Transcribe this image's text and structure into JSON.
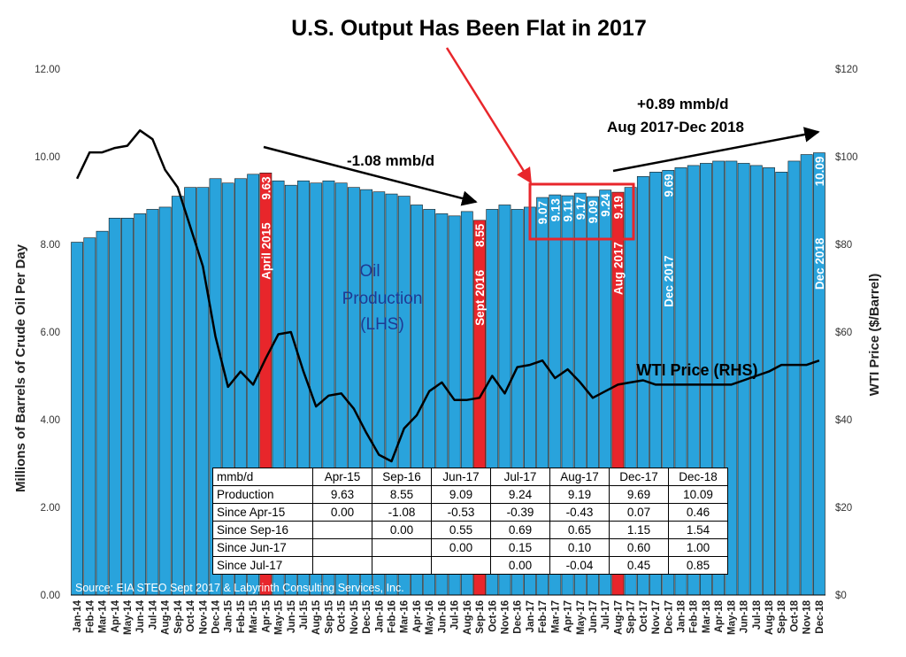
{
  "chart_data": {
    "type": "bar",
    "title": "U.S. Output Has Been Flat in 2017",
    "ylabel": "Millions of Barrels of Crude Oil Per Day",
    "y2label": "WTI Price ($/Barrel)",
    "ylim": [
      0,
      12
    ],
    "y2lim": [
      0,
      120
    ],
    "yticks": [
      "0.00",
      "2.00",
      "4.00",
      "6.00",
      "8.00",
      "10.00",
      "12.00"
    ],
    "y2ticks": [
      "$0",
      "$20",
      "$40",
      "$60",
      "$80",
      "$100",
      "$120"
    ],
    "bar_color": "#29A3DC",
    "highlight_color": "#E8262B",
    "line_color": "#000000",
    "grid": false,
    "categories": [
      "Jan-14",
      "Feb-14",
      "Mar-14",
      "Apr-14",
      "May-14",
      "Jun-14",
      "Jul-14",
      "Aug-14",
      "Sep-14",
      "Oct-14",
      "Nov-14",
      "Dec-14",
      "Jan-15",
      "Feb-15",
      "Mar-15",
      "Apr-15",
      "May-15",
      "Jun-15",
      "Jul-15",
      "Aug-15",
      "Sep-15",
      "Oct-15",
      "Nov-15",
      "Dec-15",
      "Jan-16",
      "Feb-16",
      "Mar-16",
      "Apr-16",
      "May-16",
      "Jun-16",
      "Jul-16",
      "Aug-16",
      "Sep-16",
      "Oct-16",
      "Nov-16",
      "Dec-16",
      "Jan-17",
      "Feb-17",
      "Mar-17",
      "Apr-17",
      "May-17",
      "Jun-17",
      "Jul-17",
      "Aug-17",
      "Sep-17",
      "Oct-17",
      "Nov-17",
      "Dec-17",
      "Jan-18",
      "Feb-18",
      "Mar-18",
      "Apr-18",
      "May-18",
      "Jun-18",
      "Jul-18",
      "Aug-18",
      "Sep-18",
      "Oct-18",
      "Nov-18",
      "Dec-18"
    ],
    "series": [
      {
        "name": "Oil Production (LHS)",
        "type": "bar",
        "values": [
          8.05,
          8.15,
          8.3,
          8.6,
          8.6,
          8.7,
          8.8,
          8.85,
          9.1,
          9.3,
          9.3,
          9.5,
          9.4,
          9.5,
          9.6,
          9.63,
          9.45,
          9.35,
          9.45,
          9.4,
          9.45,
          9.4,
          9.3,
          9.25,
          9.2,
          9.15,
          9.1,
          8.9,
          8.8,
          8.7,
          8.65,
          8.75,
          8.55,
          8.8,
          8.9,
          8.8,
          8.85,
          9.07,
          9.13,
          9.11,
          9.17,
          9.09,
          9.24,
          9.19,
          9.3,
          9.55,
          9.65,
          9.69,
          9.75,
          9.8,
          9.85,
          9.9,
          9.9,
          9.85,
          9.8,
          9.75,
          9.65,
          9.9,
          10.05,
          10.09
        ]
      },
      {
        "name": "WTI Price (RHS)",
        "type": "line",
        "axis": "right",
        "values": [
          95,
          101,
          101,
          102,
          102.5,
          106,
          104,
          97,
          93,
          84,
          75,
          59,
          47.5,
          51,
          48,
          54,
          59.5,
          60,
          51,
          43,
          45.5,
          46,
          42.5,
          37,
          32,
          30.5,
          38,
          41,
          46.5,
          48.5,
          44.5,
          44.5,
          45,
          50,
          46,
          52,
          52.5,
          53.5,
          49.5,
          51.5,
          48.5,
          45,
          46.5,
          48,
          48.5,
          49,
          48,
          48,
          48,
          48,
          48,
          48,
          48,
          49,
          50,
          51,
          52.5,
          52.5,
          52.5,
          53.5
        ]
      }
    ],
    "highlight_bars": [
      {
        "category": "Apr-15",
        "value": "9.63",
        "label": "April 2015"
      },
      {
        "category": "Sep-16",
        "value": "8.55",
        "label": "Sept 2016"
      },
      {
        "category": "Aug-17",
        "value": "9.19",
        "label": "Aug 2017"
      }
    ],
    "bar_value_labels": [
      {
        "category": "Feb-17",
        "value": "9.07"
      },
      {
        "category": "Mar-17",
        "value": "9.13"
      },
      {
        "category": "Apr-17",
        "value": "9.11"
      },
      {
        "category": "May-17",
        "value": "9.17"
      },
      {
        "category": "Jun-17",
        "value": "9.09"
      },
      {
        "category": "Jul-17",
        "value": "9.24"
      },
      {
        "category": "Dec-17",
        "value": "9.69",
        "label": "Dec 2017"
      },
      {
        "category": "Dec-18",
        "value": "10.09",
        "label": "Dec 2018"
      }
    ],
    "annotations": {
      "decline": "-1.08 mmb/d",
      "growth_line1": "+0.89 mmb/d",
      "growth_line2": "Aug 2017-Dec 2018",
      "production_label_1": "Oil",
      "production_label_2": "Production",
      "production_label_3": "(LHS)",
      "price_label": "WTI Price (RHS)",
      "source": "Source: EIA STEO Sept  2017 &  Labyrinth Consulting Services, Inc."
    }
  },
  "table": {
    "headers": [
      "mmb/d",
      "Apr-15",
      "Sep-16",
      "Jun-17",
      "Jul-17",
      "Aug-17",
      "Dec-17",
      "Dec-18"
    ],
    "rows": [
      [
        "Production",
        "9.63",
        "8.55",
        "9.09",
        "9.24",
        "9.19",
        "9.69",
        "10.09"
      ],
      [
        "Since Apr-15",
        "0.00",
        "-1.08",
        "-0.53",
        "-0.39",
        "-0.43",
        "0.07",
        "0.46"
      ],
      [
        "Since Sep-16",
        "",
        "0.00",
        "0.55",
        "0.69",
        "0.65",
        "1.15",
        "1.54"
      ],
      [
        "Since Jun-17",
        "",
        "",
        "0.00",
        "0.15",
        "0.10",
        "0.60",
        "1.00"
      ],
      [
        "Since Jul-17",
        "",
        "",
        "",
        "0.00",
        "-0.04",
        "0.45",
        "0.85"
      ]
    ]
  }
}
